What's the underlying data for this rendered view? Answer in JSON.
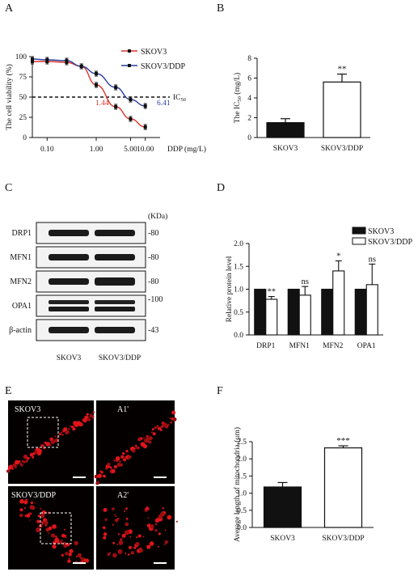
{
  "panels": {
    "a": "A",
    "b": "B",
    "c": "C",
    "d": "D",
    "e": "E",
    "f": "F"
  },
  "chart_data": [
    {
      "id": "A",
      "type": "line",
      "xlabel": "DDP (mg/L)",
      "ylabel": "The cell viability (%)",
      "x_scale": "log",
      "xlim": [
        0.05,
        20
      ],
      "ylim": [
        0,
        100
      ],
      "x_ticks": [
        "0.10",
        "1.00",
        "5.00",
        "10.00"
      ],
      "y_ticks": [
        "0",
        "25",
        "50",
        "75",
        "100"
      ],
      "ic50_line": {
        "y": 50,
        "label": "IC50"
      },
      "series": [
        {
          "name": "SKOV3",
          "color": "#d9342b",
          "x": [
            0.05,
            0.1,
            0.25,
            0.5,
            1.0,
            2.5,
            5.0,
            10.0
          ],
          "y": [
            94,
            94,
            93,
            88,
            65,
            38,
            23,
            13
          ],
          "err": [
            3,
            3,
            3,
            3,
            3,
            3,
            3,
            3
          ],
          "ic50_value": "1.44"
        },
        {
          "name": "SKOV3/DDP",
          "color": "#2c3e9e",
          "x": [
            0.05,
            0.1,
            0.25,
            0.5,
            1.0,
            2.5,
            5.0,
            10.0
          ],
          "y": [
            97,
            96,
            95,
            88,
            79,
            62,
            47,
            39
          ],
          "err": [
            3,
            3,
            3,
            3,
            3,
            3,
            3,
            3
          ],
          "ic50_value": "6.41"
        }
      ]
    },
    {
      "id": "B",
      "type": "bar",
      "ylabel": "The IC50 (mg/L)",
      "categories": [
        "SKOV3",
        "SKOV3/DDP"
      ],
      "values": [
        1.5,
        5.6
      ],
      "errors": [
        0.4,
        0.8
      ],
      "fills": [
        "#111111",
        "#ffffff"
      ],
      "significance": [
        "",
        "**"
      ],
      "ylim": [
        0,
        8
      ],
      "y_ticks": [
        "0",
        "2",
        "4",
        "6",
        "8"
      ]
    },
    {
      "id": "D",
      "type": "bar",
      "ylabel": "Relative protein level",
      "categories": [
        "DRP1",
        "MFN1",
        "MFN2",
        "OPA1"
      ],
      "series": [
        {
          "name": "SKOV3",
          "fill": "#111111",
          "values": [
            1.0,
            1.0,
            1.0,
            1.0
          ],
          "errors": [
            0,
            0,
            0,
            0
          ]
        },
        {
          "name": "SKOV3/DDP",
          "fill": "#ffffff",
          "values": [
            0.78,
            0.87,
            1.4,
            1.1
          ],
          "errors": [
            0.06,
            0.19,
            0.22,
            0.45
          ]
        }
      ],
      "significance": [
        "**",
        "ns",
        "*",
        "ns"
      ],
      "ylim": [
        0,
        2.0
      ],
      "y_ticks": [
        "0.0",
        "0.5",
        "1.0",
        "1.5",
        "2.0"
      ]
    },
    {
      "id": "F",
      "type": "bar",
      "ylabel": "Average length of mitochondria (μm)",
      "categories": [
        "SKOV3",
        "SKOV3/DDP"
      ],
      "values": [
        1.18,
        2.32
      ],
      "errors": [
        0.13,
        0.06
      ],
      "fills": [
        "#111111",
        "#ffffff"
      ],
      "significance": [
        "",
        "***"
      ],
      "ylim": [
        0,
        2.5
      ],
      "y_ticks": [
        "0.0",
        "0.5",
        "1.0",
        "1.5",
        "2.0",
        "2.5"
      ]
    }
  ],
  "western_blot": {
    "unit_label": "(KDa)",
    "proteins": [
      {
        "name": "DRP1",
        "kda": "-80"
      },
      {
        "name": "MFN1",
        "kda": "-80"
      },
      {
        "name": "MFN2",
        "kda": "-80"
      },
      {
        "name": "OPA1",
        "kda": "-100"
      },
      {
        "name": "β-actin",
        "kda": "-43"
      }
    ],
    "lanes": [
      "SKOV3",
      "SKOV3/DDP"
    ]
  },
  "microscopy": {
    "labels": [
      "SKOV3",
      "A1'",
      "SKOV3/DDP",
      "A2'"
    ]
  }
}
